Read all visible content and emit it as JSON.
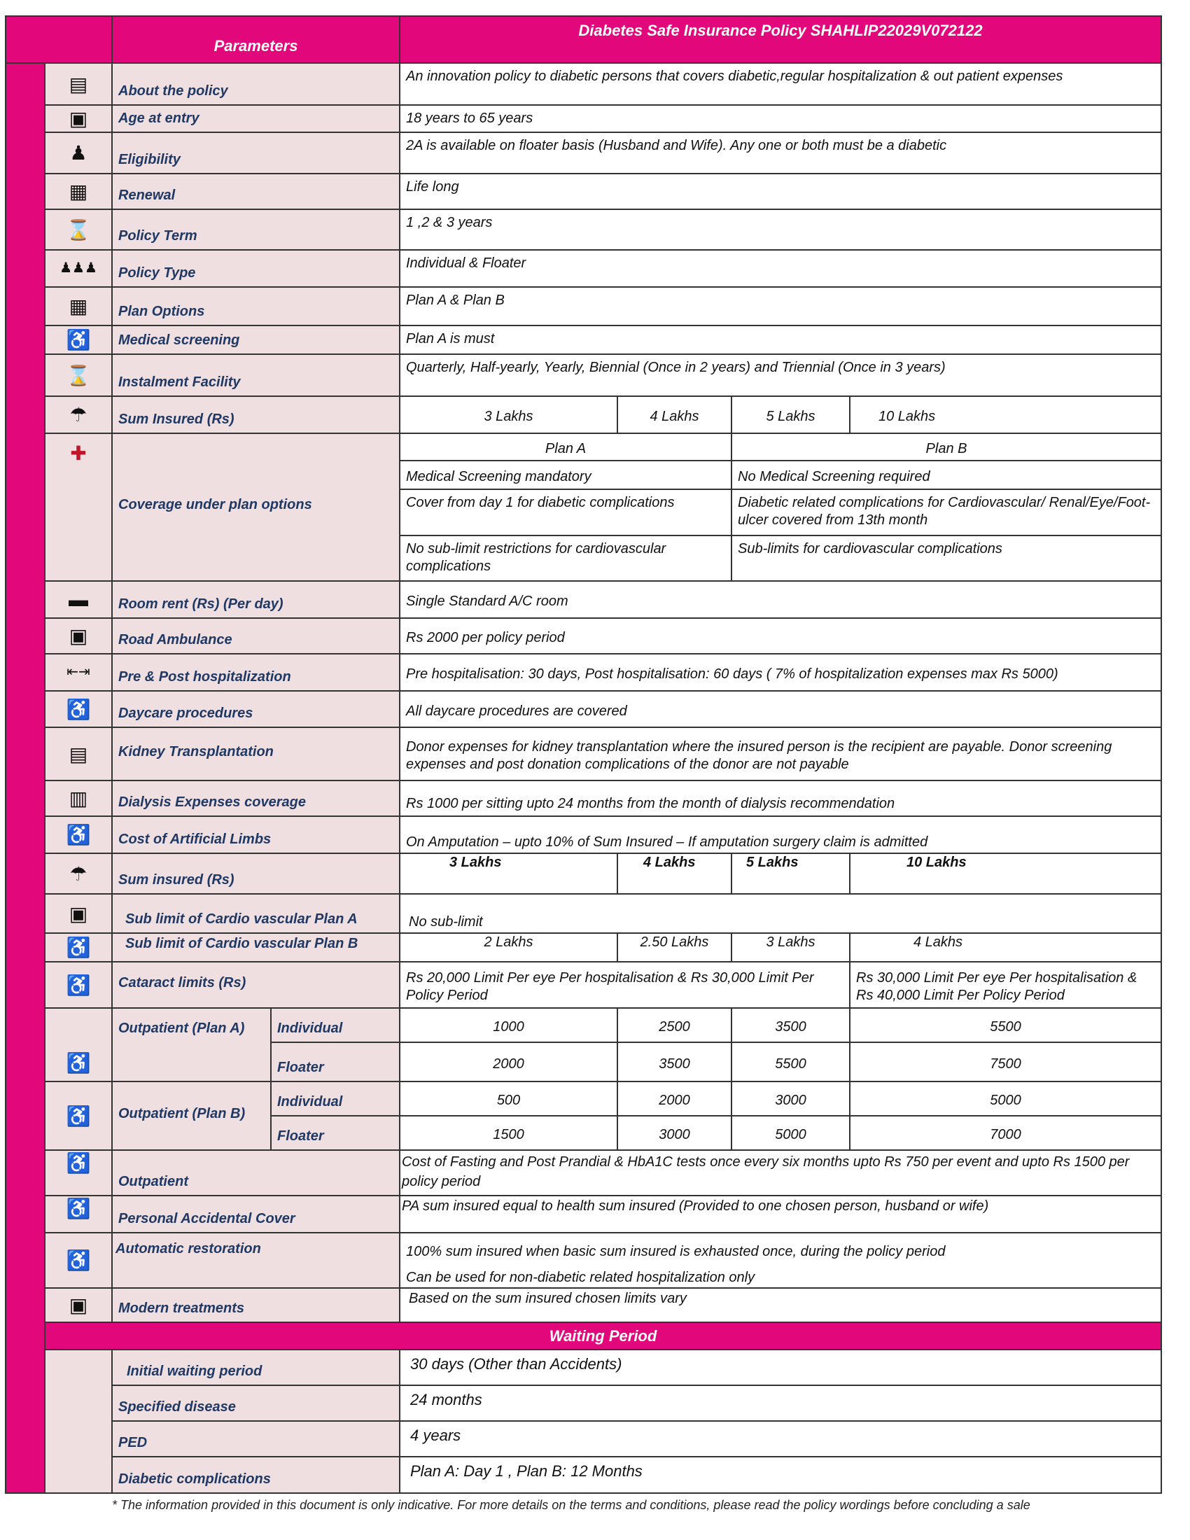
{
  "colors": {
    "accent": "#e2077b",
    "label_bg": "#efdfe0",
    "label_text": "#1f3864"
  },
  "header": {
    "parameters": "Parameters",
    "title": "Diabetes Safe Insurance Policy SHAHLIP22029V072122"
  },
  "rows": {
    "about": {
      "icon": "document-icon",
      "label": "About the policy",
      "value": "An innovation policy to diabetic persons that covers diabetic,regular hospitalization & out patient expenses"
    },
    "age": {
      "icon": "people-icon",
      "label": "Age at entry",
      "value": "18 years to 65 years"
    },
    "eligibility": {
      "icon": "person-icon",
      "label": "Eligibility",
      "value": "2A is available on floater basis (Husband and Wife). Any one or both must be a diabetic"
    },
    "renewal": {
      "icon": "form-icon",
      "label": "Renewal",
      "value": "Life long"
    },
    "term": {
      "icon": "hourglass-icon",
      "label": "Policy Term",
      "value": "1 ,2 & 3 years"
    },
    "type": {
      "icon": "family-icon",
      "label": "Policy Type",
      "value": "Individual & Floater"
    },
    "plan_options": {
      "icon": "form-icon",
      "label": "Plan Options",
      "value": "Plan A & Plan B"
    },
    "medical_screening": {
      "icon": "patient-icon",
      "label": "Medical screening",
      "value": "Plan A is must"
    },
    "instalment": {
      "icon": "hourglass-icon",
      "label": "Instalment Facility",
      "value": "Quarterly, Half-yearly, Yearly, Biennial (Once in 2 years) and Triennial (Once in 3 years)"
    },
    "sum_insured": {
      "icon": "umbrella-icon",
      "label": "Sum Insured (Rs)",
      "values": [
        "3 Lakhs",
        "4 Lakhs",
        "5 Lakhs",
        "10 Lakhs"
      ]
    },
    "coverage": {
      "icon": "hospital-icon",
      "label": "Coverage under plan options",
      "plan_a": "Plan A",
      "plan_b": "Plan B",
      "lines": [
        [
          "Medical Screening mandatory",
          "No Medical Screening required"
        ],
        [
          "Cover from day 1 for diabetic complications",
          "Diabetic related complications for Cardiovascular/ Renal/Eye/Foot-ulcer covered from 13th month"
        ],
        [
          "No sub-limit restrictions for cardiovascular complications",
          "Sub-limits for cardiovascular complications"
        ]
      ]
    },
    "room_rent": {
      "icon": "bed-icon",
      "label": "Room rent (Rs) (Per day)",
      "value": "Single Standard A/C room"
    },
    "ambulance": {
      "icon": "ambulance-icon",
      "label": "Road Ambulance",
      "value": "Rs 2000 per policy period"
    },
    "pre_post": {
      "icon": "arrows-icon",
      "label": "Pre & Post hospitalization",
      "value": "Pre hospitalisation: 30 days, Post hospitalisation: 60 days ( 7% of hospitalization expenses max Rs 5000)"
    },
    "daycare": {
      "icon": "patient-icon",
      "label": "Daycare procedures",
      "value": "All daycare procedures are covered"
    },
    "kidney": {
      "icon": "clipboard-icon",
      "label": "Kidney Transplantation",
      "value": "Donor expenses for kidney transplantation where the insured person is the recipient are payable. Donor screening expenses and post donation complications of the donor are not payable"
    },
    "dialysis": {
      "icon": "building-icon",
      "label": "Dialysis Expenses coverage",
      "value": "Rs 1000 per sitting upto 24 months from the month of dialysis recommendation"
    },
    "limbs": {
      "icon": "patient-icon",
      "label": "Cost of Artificial Limbs",
      "value": "On Amputation – upto 10% of Sum Insured – If amputation surgery claim is admitted"
    },
    "sum_insured_2": {
      "icon": "umbrella-icon",
      "label": "Sum insured (Rs)",
      "values": [
        "3 Lakhs",
        "4 Lakhs",
        "5 Lakhs",
        "10 Lakhs"
      ]
    },
    "cardio_a": {
      "icon": "monitor-icon",
      "label": "Sub limit of Cardio vascular Plan A",
      "value": "No sub-limit"
    },
    "cardio_b": {
      "icon": "hospital-bed-icon",
      "label": "Sub limit of Cardio vascular Plan B",
      "values": [
        "2 Lakhs",
        "2.50 Lakhs",
        "3 Lakhs",
        "4 Lakhs"
      ]
    },
    "cataract": {
      "icon": "eye-test-icon",
      "label": "Cataract limits (Rs)",
      "values": [
        "Rs 20,000 Limit Per eye Per hospitalisation & Rs 30,000 Limit Per Policy Period",
        "Rs 30,000 Limit Per eye Per hospitalisation & Rs 40,000 Limit Per Policy Period"
      ]
    },
    "op_a": {
      "icon": "patient-icon",
      "label": "Outpatient (Plan A)",
      "individual_label": "Individual",
      "floater_label": "Floater",
      "individual": [
        "1000",
        "2500",
        "3500",
        "5500"
      ],
      "floater": [
        "2000",
        "3500",
        "5500",
        "7500"
      ]
    },
    "op_b": {
      "icon": "hospital-bed-icon",
      "label": "Outpatient (Plan B)",
      "individual_label": "Individual",
      "floater_label": "Floater",
      "individual": [
        "500",
        "2000",
        "3000",
        "5000"
      ],
      "floater": [
        "1500",
        "3000",
        "5000",
        "7000"
      ]
    },
    "outpatient": {
      "icon": "hospital-bed-icon",
      "label": "Outpatient",
      "value": "Cost of Fasting and Post Prandial & HbA1C tests once every six months upto Rs 750 per event and upto Rs 1500 per policy period"
    },
    "pa": {
      "icon": "patient-icon",
      "label": "Personal Accidental Cover",
      "value": "PA sum insured equal to health sum insured (Provided to one chosen person, husband or wife)"
    },
    "restoration": {
      "icon": "hospital-bed-icon",
      "label": "Automatic restoration",
      "value1": "100% sum insured when basic sum insured is exhausted once, during the policy period",
      "value2": "Can be used for non-diabetic related hospitalization only"
    },
    "modern": {
      "icon": "monitor-icon",
      "label": "Modern treatments",
      "value": "Based on the sum insured chosen limits vary"
    }
  },
  "waiting": {
    "title": "Waiting Period",
    "rows": [
      {
        "label": "Initial waiting period",
        "value": "30 days (Other than Accidents)"
      },
      {
        "label": "Specified disease",
        "value": "24 months"
      },
      {
        "label": "PED",
        "value": "4 years"
      },
      {
        "label": "Diabetic complications",
        "value": "Plan A: Day 1 , Plan B: 12 Months"
      }
    ]
  },
  "footnote": "* The information provided in this document is only indicative. For more details on the terms and conditions, please read the policy wordings before concluding a sale"
}
